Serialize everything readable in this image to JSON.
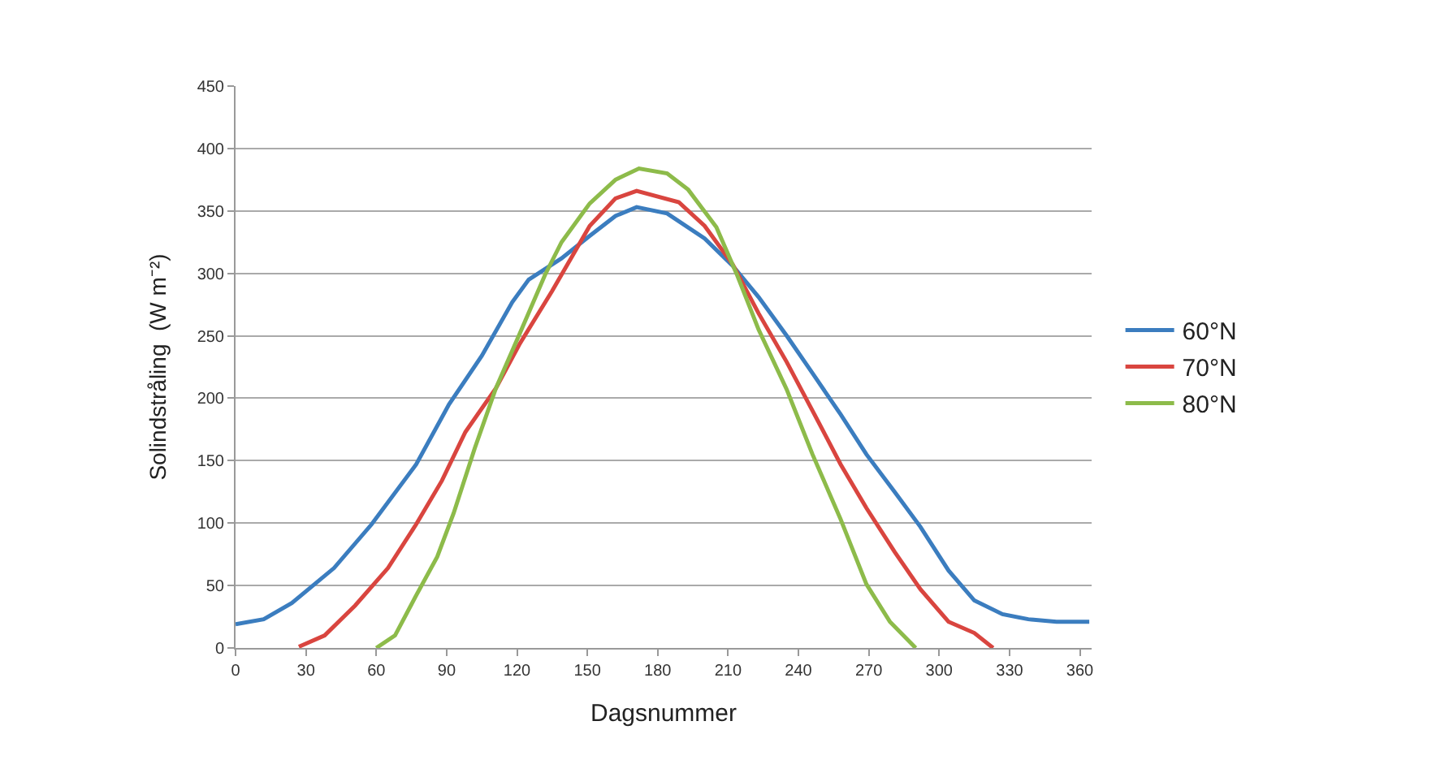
{
  "chart_data": {
    "type": "line",
    "xlabel": "Dagsnummer",
    "ylabel": "Solindstråling  (W m⁻²)",
    "xlim": [
      0,
      365
    ],
    "xticks": [
      0,
      30,
      60,
      90,
      120,
      150,
      180,
      210,
      240,
      270,
      300,
      330,
      360
    ],
    "ylim": [
      0,
      450
    ],
    "yticks": [
      0,
      50,
      100,
      150,
      200,
      250,
      300,
      350,
      400,
      450
    ],
    "grid": "y",
    "legend": "right",
    "marker": "none",
    "line_style": "solid",
    "series": [
      {
        "name": "60°N",
        "color": "#3b7dbf",
        "x": [
          0,
          12,
          24,
          42,
          58,
          77,
          91,
          105,
          118,
          125,
          139,
          151,
          162,
          171,
          184,
          200,
          212,
          223,
          235,
          246,
          258,
          269,
          281,
          292,
          304,
          315,
          327,
          338,
          350,
          364
        ],
        "values": [
          19,
          23,
          36,
          64,
          99,
          147,
          195,
          234,
          277,
          295,
          312,
          330,
          346,
          353,
          348,
          328,
          306,
          281,
          250,
          220,
          187,
          155,
          125,
          97,
          62,
          38,
          27,
          23,
          21,
          21
        ]
      },
      {
        "name": "70°N",
        "color": "#d9453f",
        "x": [
          27,
          38,
          51,
          65,
          77,
          88,
          98,
          111,
          121,
          135,
          151,
          162,
          171,
          189,
          200,
          212,
          223,
          235,
          246,
          258,
          269,
          281,
          292,
          304,
          315,
          323
        ],
        "values": [
          1,
          10,
          34,
          64,
          99,
          134,
          173,
          208,
          243,
          286,
          338,
          360,
          366,
          357,
          338,
          307,
          268,
          229,
          190,
          147,
          112,
          77,
          47,
          21,
          12,
          0
        ]
      },
      {
        "name": "80°N",
        "color": "#8dbb4a",
        "x": [
          60,
          68,
          77,
          86,
          93,
          102,
          111,
          121,
          132,
          139,
          151,
          162,
          172,
          184,
          193,
          205,
          214,
          223,
          235,
          246,
          258,
          269,
          279,
          290
        ],
        "values": [
          0,
          10,
          42,
          73,
          108,
          160,
          208,
          251,
          299,
          325,
          356,
          375,
          384,
          380,
          367,
          337,
          298,
          255,
          207,
          155,
          103,
          51,
          21,
          0
        ]
      }
    ]
  }
}
